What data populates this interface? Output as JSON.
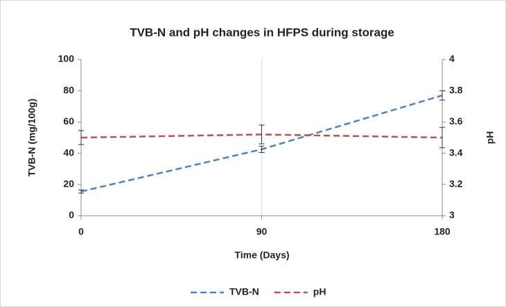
{
  "chart_data": {
    "type": "line",
    "title": "TVB-N and pH changes in HFPS during storage",
    "x_label": "Time (Days)",
    "y_label": "TVB-N (mg/100g)",
    "y2_label": "pH",
    "x": [
      0,
      90,
      180
    ],
    "series": [
      {
        "name": "TVB-N",
        "color": "#4f81bd",
        "axis": "y",
        "values": [
          15.5,
          42.5,
          77
        ],
        "errors": [
          1,
          2,
          3
        ]
      },
      {
        "name": "pH",
        "color": "#c0504d",
        "axis": "y2",
        "values": [
          3.5,
          3.52,
          3.5
        ],
        "errors": [
          0.045,
          0.06,
          0.065
        ]
      }
    ],
    "xlim": [
      0,
      180
    ],
    "xticks": [
      0,
      90,
      180
    ],
    "ylim": [
      0,
      100
    ],
    "yticks": [
      0,
      20,
      40,
      60,
      80,
      100
    ],
    "y2lim": [
      3,
      4
    ],
    "y2ticks": [
      3,
      3.2,
      3.4,
      3.6,
      3.8,
      4
    ],
    "grid": "x",
    "legend": "bottom"
  }
}
